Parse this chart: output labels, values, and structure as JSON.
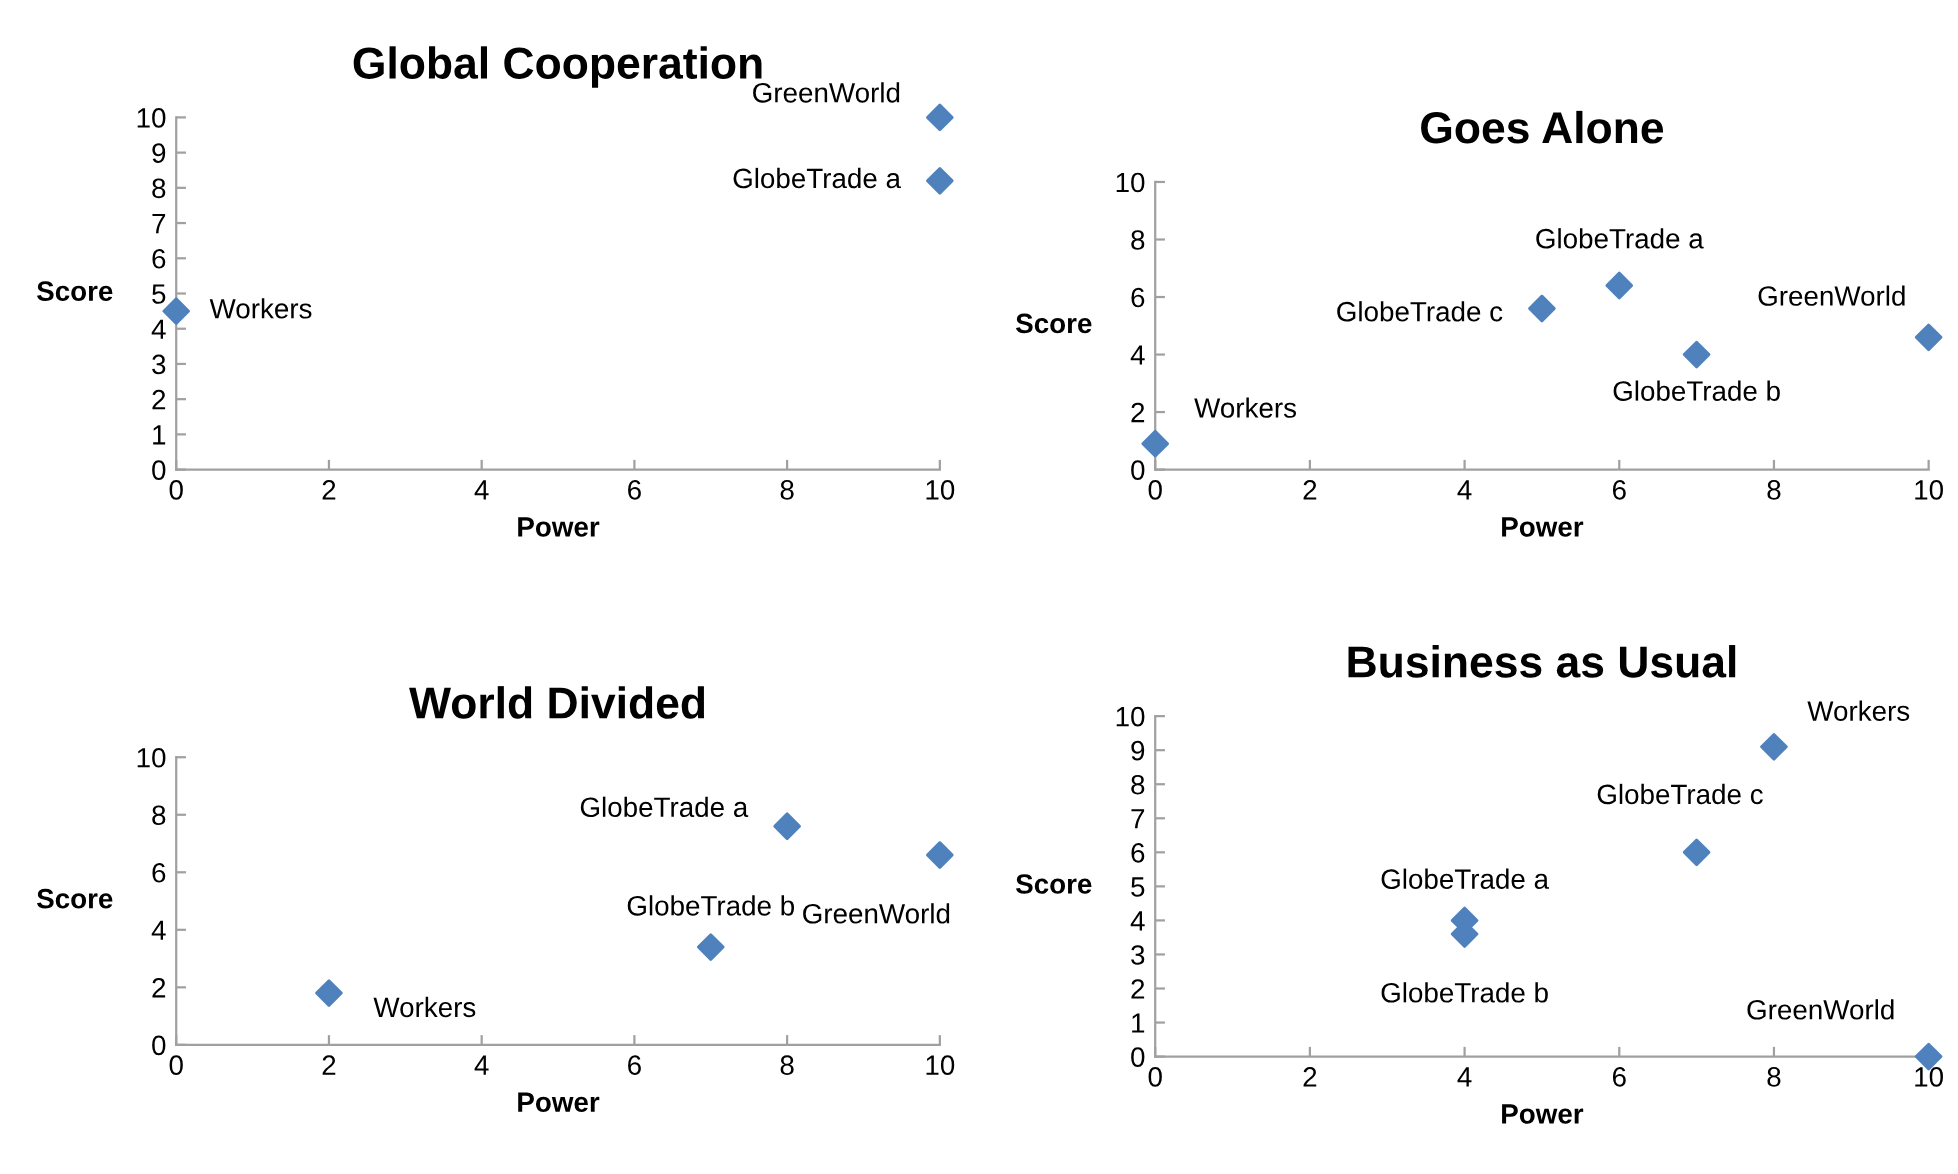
{
  "chart_data": [
    {
      "type": "scatter",
      "title": "Global Cooperation",
      "xlabel": "Power",
      "ylabel": "Score",
      "marker": "diamond",
      "grid": false,
      "xlim": [
        0,
        10
      ],
      "xticks": [
        0,
        2,
        4,
        6,
        8,
        10
      ],
      "ylim": [
        0,
        10
      ],
      "yticks": [
        0,
        1,
        2,
        3,
        4,
        5,
        6,
        7,
        8,
        9,
        10
      ],
      "x": [
        0,
        10,
        10
      ],
      "series": [
        {
          "color": "#4f81bd",
          "values": [
            4.5,
            10,
            8.2
          ]
        }
      ],
      "annotations": [
        {
          "text": "Workers",
          "x": 0,
          "y": 4.5
        },
        {
          "text": "GreenWorld",
          "x": 10,
          "y": 10
        },
        {
          "text": "GlobeTrade a",
          "x": 10,
          "y": 8.2
        }
      ]
    },
    {
      "type": "scatter",
      "title": "Goes Alone",
      "xlabel": "Power",
      "ylabel": "Score",
      "marker": "diamond",
      "grid": false,
      "xlim": [
        0,
        10
      ],
      "xticks": [
        0,
        2,
        4,
        6,
        8,
        10
      ],
      "ylim": [
        0,
        10
      ],
      "yticks": [
        0,
        2,
        4,
        6,
        8,
        10
      ],
      "x": [
        0,
        5,
        6,
        7,
        10
      ],
      "series": [
        {
          "color": "#4f81bd",
          "values": [
            0.9,
            5.6,
            6.4,
            4.0,
            4.6
          ]
        }
      ],
      "annotations": [
        {
          "text": "Workers",
          "x": 0,
          "y": 0.9
        },
        {
          "text": "GlobeTrade c",
          "x": 5,
          "y": 5.6
        },
        {
          "text": "GlobeTrade a",
          "x": 6,
          "y": 6.4
        },
        {
          "text": "GlobeTrade b",
          "x": 7,
          "y": 4.0
        },
        {
          "text": "GreenWorld",
          "x": 10,
          "y": 4.6
        }
      ]
    },
    {
      "type": "scatter",
      "title": "World Divided",
      "xlabel": "Power",
      "ylabel": "Score",
      "marker": "diamond",
      "grid": false,
      "xlim": [
        0,
        10
      ],
      "xticks": [
        0,
        2,
        4,
        6,
        8,
        10
      ],
      "ylim": [
        0,
        10
      ],
      "yticks": [
        0,
        2,
        4,
        6,
        8,
        10
      ],
      "x": [
        2,
        7,
        8,
        10
      ],
      "series": [
        {
          "color": "#4f81bd",
          "values": [
            1.8,
            3.4,
            7.6,
            6.6
          ]
        }
      ],
      "annotations": [
        {
          "text": "Workers",
          "x": 2,
          "y": 1.8
        },
        {
          "text": "GlobeTrade b",
          "x": 7,
          "y": 3.4
        },
        {
          "text": "GlobeTrade a",
          "x": 8,
          "y": 7.6
        },
        {
          "text": "GreenWorld",
          "x": 10,
          "y": 6.6
        }
      ]
    },
    {
      "type": "scatter",
      "title": "Business as Usual",
      "xlabel": "Power",
      "ylabel": "Score",
      "marker": "diamond",
      "grid": false,
      "xlim": [
        0,
        10
      ],
      "xticks": [
        0,
        2,
        4,
        6,
        8,
        10
      ],
      "ylim": [
        0,
        10
      ],
      "yticks": [
        0,
        1,
        2,
        3,
        4,
        5,
        6,
        7,
        8,
        9,
        10
      ],
      "x": [
        4,
        4,
        7,
        8,
        10
      ],
      "series": [
        {
          "color": "#4f81bd",
          "values": [
            4.0,
            3.6,
            6.0,
            9.1,
            0
          ]
        }
      ],
      "annotations": [
        {
          "text": "GlobeTrade a",
          "x": 4,
          "y": 4.0
        },
        {
          "text": "GlobeTrade b",
          "x": 4,
          "y": 3.6
        },
        {
          "text": "GlobeTrade c",
          "x": 7,
          "y": 6.0
        },
        {
          "text": "Workers",
          "x": 8,
          "y": 9.1
        },
        {
          "text": "GreenWorld",
          "x": 10,
          "y": 0
        }
      ]
    }
  ]
}
